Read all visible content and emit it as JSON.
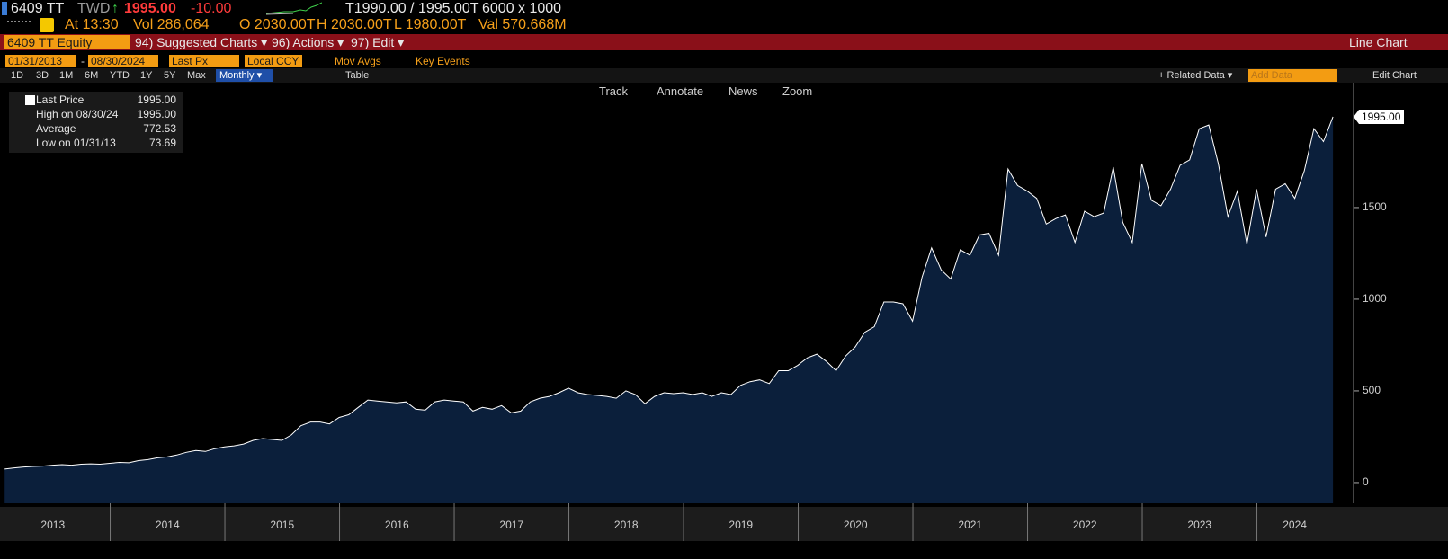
{
  "ticker_bar": {
    "ticker": "6409 TT",
    "currency": "TWD",
    "arrow": "↑",
    "price": "1995.00",
    "change": "-10.00",
    "bid_ask": "T1990.00 / 1995.00T",
    "size": "6000 x 1000"
  },
  "quote_bar": {
    "time": "At 13:30",
    "volume": "Vol 286,064",
    "open": "O 2030.00T",
    "high": "H 2030.00T",
    "low": "L 1980.00T",
    "value": "Val 570.668M"
  },
  "menu_bar": {
    "security": "6409 TT Equity",
    "items": [
      "94) Suggested Charts ▾",
      "96) Actions ▾",
      "97) Edit ▾"
    ],
    "chart_type": "Line Chart"
  },
  "settings_bar": {
    "start": "01/31/2013",
    "end": "08/30/2024",
    "field": "Last Px",
    "currency": "Local CCY",
    "mov_avgs": "Mov Avgs",
    "key_events": "Key Events"
  },
  "range_bar": {
    "ranges": [
      "1D",
      "3D",
      "1M",
      "6M",
      "YTD",
      "1Y",
      "5Y",
      "Max"
    ],
    "period": "Monthly ▾",
    "table": "Table",
    "related": "+ Related Data ▾",
    "add_data": "Add Data",
    "edit_chart": "Edit Chart"
  },
  "chart_tools": [
    "Track",
    "Annotate",
    "News",
    "Zoom"
  ],
  "legend_box": [
    {
      "label": "Last Price",
      "value": "1995.00"
    },
    {
      "label": "High on 08/30/24",
      "value": "1995.00"
    },
    {
      "label": "Average",
      "value": "772.53"
    },
    {
      "label": "Low on 01/31/13",
      "value": "73.69"
    }
  ],
  "chart_data": {
    "type": "area",
    "color": "#0b1f3b",
    "line_color": "#ffffff",
    "last_label": "1995.00",
    "x": [
      2013.08,
      2013.163,
      2013.247,
      2013.33,
      2013.413,
      2013.497,
      2013.58,
      2013.663,
      2013.747,
      2013.83,
      2013.913,
      2013.997,
      2014.08,
      2014.163,
      2014.247,
      2014.33,
      2014.413,
      2014.497,
      2014.58,
      2014.663,
      2014.747,
      2014.83,
      2014.913,
      2014.997,
      2015.08,
      2015.163,
      2015.247,
      2015.33,
      2015.413,
      2015.497,
      2015.58,
      2015.663,
      2015.747,
      2015.83,
      2015.913,
      2015.997,
      2016.08,
      2016.163,
      2016.247,
      2016.33,
      2016.413,
      2016.497,
      2016.58,
      2016.663,
      2016.747,
      2016.83,
      2016.913,
      2016.997,
      2017.08,
      2017.163,
      2017.247,
      2017.33,
      2017.413,
      2017.497,
      2017.58,
      2017.663,
      2017.747,
      2017.83,
      2017.913,
      2017.997,
      2018.08,
      2018.163,
      2018.247,
      2018.33,
      2018.413,
      2018.497,
      2018.58,
      2018.663,
      2018.747,
      2018.83,
      2018.913,
      2018.997,
      2019.08,
      2019.163,
      2019.247,
      2019.33,
      2019.413,
      2019.497,
      2019.58,
      2019.663,
      2019.747,
      2019.83,
      2019.913,
      2019.997,
      2020.08,
      2020.163,
      2020.247,
      2020.33,
      2020.413,
      2020.497,
      2020.58,
      2020.663,
      2020.747,
      2020.83,
      2020.913,
      2020.997,
      2021.08,
      2021.163,
      2021.247,
      2021.33,
      2021.413,
      2021.497,
      2021.58,
      2021.663,
      2021.747,
      2021.83,
      2021.913,
      2021.997,
      2022.08,
      2022.163,
      2022.247,
      2022.33,
      2022.413,
      2022.497,
      2022.58,
      2022.663,
      2022.747,
      2022.83,
      2022.913,
      2022.997,
      2023.08,
      2023.163,
      2023.247,
      2023.33,
      2023.413,
      2023.497,
      2023.58,
      2023.663,
      2023.747,
      2023.83,
      2023.913,
      2023.997,
      2024.08,
      2024.163,
      2024.247,
      2024.33,
      2024.413,
      2024.497,
      2024.58,
      2024.663
    ],
    "values": [
      73.69,
      80,
      85,
      88,
      90,
      95,
      98,
      95,
      100,
      102,
      100,
      105,
      110,
      108,
      120,
      125,
      135,
      140,
      150,
      165,
      175,
      170,
      185,
      195,
      200,
      210,
      230,
      240,
      235,
      230,
      260,
      310,
      330,
      330,
      320,
      355,
      370,
      410,
      450,
      445,
      440,
      435,
      440,
      400,
      395,
      440,
      450,
      445,
      440,
      390,
      410,
      400,
      420,
      380,
      390,
      440,
      460,
      470,
      490,
      515,
      490,
      480,
      475,
      470,
      460,
      500,
      480,
      430,
      470,
      490,
      485,
      490,
      480,
      490,
      470,
      490,
      480,
      530,
      550,
      560,
      540,
      610,
      610,
      640,
      680,
      700,
      660,
      610,
      690,
      740,
      820,
      850,
      985,
      985,
      975,
      880,
      1120,
      1280,
      1160,
      1110,
      1270,
      1240,
      1350,
      1360,
      1240,
      1710,
      1620,
      1590,
      1550,
      1410,
      1440,
      1460,
      1310,
      1480,
      1450,
      1470,
      1720,
      1420,
      1310,
      1740,
      1540,
      1510,
      1600,
      1730,
      1760,
      1930,
      1950,
      1740,
      1450,
      1590,
      1300,
      1600,
      1340,
      1600,
      1630,
      1550,
      1700,
      1930,
      1860,
      1995
    ],
    "xlim": [
      2013.039,
      2024.843
    ],
    "xticks": [
      {
        "value": 2013.5,
        "label": "2013"
      },
      {
        "value": 2014.5,
        "label": "2014"
      },
      {
        "value": 2015.5,
        "label": "2015"
      },
      {
        "value": 2016.5,
        "label": "2016"
      },
      {
        "value": 2017.5,
        "label": "2017"
      },
      {
        "value": 2018.5,
        "label": "2018"
      },
      {
        "value": 2019.5,
        "label": "2019"
      },
      {
        "value": 2020.5,
        "label": "2020"
      },
      {
        "value": 2021.5,
        "label": "2021"
      },
      {
        "value": 2022.5,
        "label": "2022"
      },
      {
        "value": 2023.5,
        "label": "2023"
      },
      {
        "value": 2024.33,
        "label": "2024"
      }
    ],
    "ylim": [
      -113,
      2181
    ],
    "yticks": [
      0,
      500,
      1000,
      1500
    ],
    "grid": false
  }
}
